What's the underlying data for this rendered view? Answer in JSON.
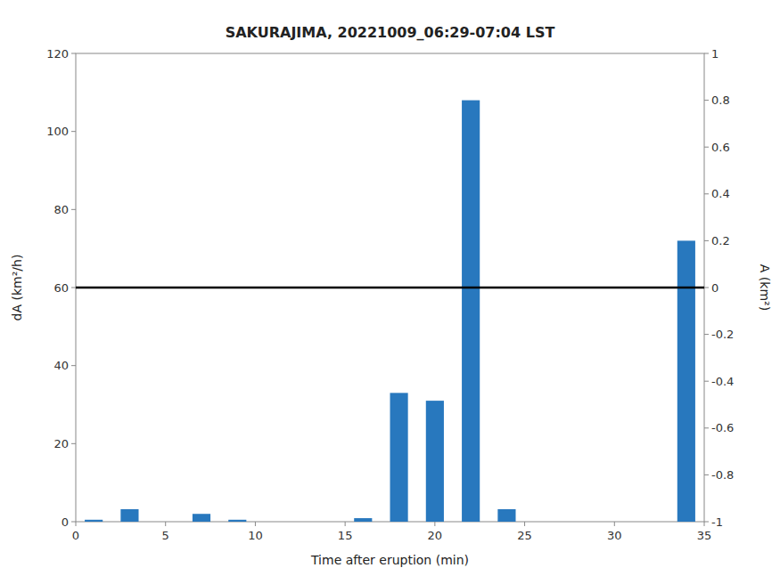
{
  "chart_data": {
    "type": "bar",
    "title": "SAKURAJIMA, 20221009_06:29-07:04 LST",
    "x_label": "Time after eruption (min)",
    "y_label": "dA (km²/h)",
    "y2_label": "A (km²)",
    "x": [
      1,
      3,
      7,
      9,
      16,
      18,
      20,
      22,
      24,
      34
    ],
    "values": [
      0.5,
      3.2,
      2.0,
      0.5,
      0.9,
      33.0,
      31.0,
      108.0,
      3.2,
      72.0
    ],
    "color": "#2878BE",
    "hline": {
      "y": 60,
      "color": "black"
    },
    "xlim": [
      0,
      35
    ],
    "xticks": [
      0,
      5,
      10,
      15,
      20,
      25,
      30,
      35
    ],
    "ylim": [
      0,
      120
    ],
    "yticks": [
      0,
      20,
      40,
      60,
      80,
      100,
      120
    ],
    "y2lim": [
      -1,
      1
    ],
    "y2ticks": [
      -1,
      -0.8,
      -0.6,
      -0.4,
      -0.2,
      0,
      0.2,
      0.4,
      0.6,
      0.8,
      1
    ]
  }
}
